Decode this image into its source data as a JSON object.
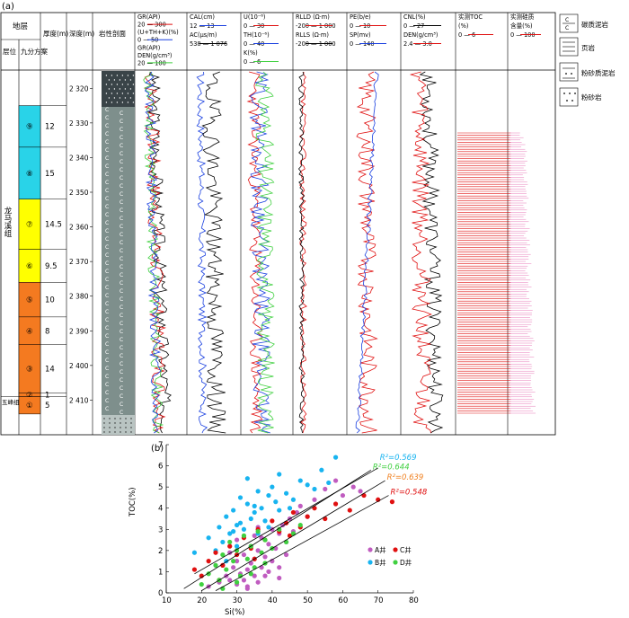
{
  "panel_a_label": "(a)",
  "panel_b_label": "(b)",
  "header": {
    "stratum": "地层",
    "layer": "层位",
    "nine_split": "九分方案",
    "thickness": "厚度(m)",
    "depth": "深度(m)",
    "lithology": "岩性剖面",
    "track1": [
      "GR(API)",
      "20 — 300",
      "(U+TH+K)(%)",
      "0 — 50",
      "GR(API)",
      "DEN(g/cm³)",
      "20 — 100"
    ],
    "track2": [
      "CAL(cm)",
      "12 — 13",
      "AC(μs/m)",
      "538 — 1 076"
    ],
    "track3": [
      "U(10⁻⁶)",
      "0 — 30",
      "TH(10⁻⁶)",
      "0 — 40",
      "K(%)",
      "0 — 6"
    ],
    "track4": [
      "RLLD (Ω·m)",
      "-200 — 1 000",
      "RLLS (Ω·m)",
      "-200 — 1 000"
    ],
    "track5": [
      "PE(b/e)",
      "0 — 10",
      "SP(mv)",
      "0 — 140"
    ],
    "track6": [
      "CNL(%)",
      "0 — 27",
      "DEN(g/cm³)",
      "2.4 — 3.0"
    ],
    "track7": [
      "实测TOC",
      "(%)",
      "0 — 6"
    ],
    "track8": [
      "实测硅质",
      "含量(%)",
      "0 — 100"
    ]
  },
  "legend": [
    "碳质泥岩",
    "页岩",
    "粉砂质泥岩",
    "粉砂岩"
  ],
  "formation": "龙马溪组",
  "formation_lower": "五峰组",
  "depth_ticks": [
    "2 320",
    "2 330",
    "2 340",
    "2 350",
    "2 360",
    "2 370",
    "2 380",
    "2 390",
    "2 400",
    "2 410"
  ],
  "units": [
    {
      "id": "⑨",
      "thickness": "12",
      "color": "#29d3e8"
    },
    {
      "id": "⑧",
      "thickness": "15",
      "color": "#29d3e8"
    },
    {
      "id": "⑦",
      "thickness": "14.5",
      "color": "#ffff00"
    },
    {
      "id": "⑥",
      "thickness": "9.5",
      "color": "#ffff00"
    },
    {
      "id": "⑤",
      "thickness": "10",
      "color": "#f47a20"
    },
    {
      "id": "④",
      "thickness": "8",
      "color": "#f47a20"
    },
    {
      "id": "③",
      "thickness": "14",
      "color": "#f47a20"
    },
    {
      "id": "②",
      "thickness": "1",
      "color": "#f47a20"
    },
    {
      "id": "①",
      "thickness": "5",
      "color": "#f47a20"
    }
  ],
  "chart_data": {
    "type": "scatter",
    "xlabel": "Si(%)",
    "ylabel": "TOC(%)",
    "xlim": [
      10,
      80
    ],
    "ylim": [
      0,
      7
    ],
    "xticks": [
      "10",
      "20",
      "30",
      "40",
      "50",
      "60",
      "70",
      "80"
    ],
    "yticks": [
      "0",
      "1",
      "2",
      "3",
      "4",
      "5",
      "6",
      "7"
    ],
    "series": [
      {
        "name": "A井",
        "color": "#c05cc0",
        "x": [
          22,
          25,
          27,
          28,
          29,
          30,
          30,
          31,
          32,
          32,
          33,
          33,
          34,
          34,
          35,
          35,
          36,
          36,
          37,
          37,
          38,
          38,
          39,
          40,
          40,
          41,
          42,
          42,
          43,
          44,
          45,
          46,
          47,
          48,
          50,
          52,
          55,
          58,
          60,
          63,
          65,
          30,
          33,
          36,
          39,
          42,
          28,
          35,
          44,
          26
        ],
        "y": [
          0.3,
          0.5,
          0.8,
          0.6,
          1.2,
          0.4,
          1.5,
          0.9,
          0.6,
          1.8,
          1.1,
          0.3,
          1.4,
          2.2,
          0.8,
          1.6,
          2.0,
          0.5,
          1.2,
          2.6,
          1.7,
          0.8,
          2.3,
          1.5,
          3.0,
          2.1,
          1.2,
          2.8,
          3.2,
          2.4,
          3.5,
          2.9,
          3.8,
          4.1,
          3.6,
          4.4,
          4.9,
          5.3,
          4.6,
          5.0,
          4.8,
          2.5,
          0.2,
          3.1,
          1.0,
          0.7,
          1.9,
          2.7,
          1.8,
          1.3
        ]
      },
      {
        "name": "B井",
        "color": "#18b4f0",
        "x": [
          18,
          22,
          24,
          25,
          26,
          27,
          28,
          29,
          30,
          31,
          32,
          33,
          34,
          35,
          36,
          37,
          38,
          39,
          40,
          41,
          42,
          44,
          46,
          48,
          50,
          52,
          54,
          56,
          58,
          27,
          30,
          33,
          36,
          39,
          42,
          45,
          29,
          31,
          35
        ],
        "y": [
          1.9,
          2.6,
          2.0,
          3.1,
          2.4,
          3.6,
          2.8,
          3.9,
          3.2,
          4.5,
          3.0,
          4.2,
          3.5,
          3.8,
          4.8,
          4.0,
          3.4,
          4.6,
          5.0,
          4.3,
          3.9,
          4.7,
          4.4,
          5.3,
          5.1,
          4.9,
          5.8,
          5.2,
          6.4,
          1.5,
          2.2,
          5.4,
          2.8,
          3.1,
          5.6,
          4.0,
          2.9,
          3.3,
          4.1
        ]
      },
      {
        "name": "C井",
        "color": "#e01010",
        "x": [
          18,
          20,
          22,
          24,
          26,
          28,
          30,
          32,
          34,
          36,
          38,
          40,
          42,
          44,
          46,
          48,
          50,
          52,
          55,
          58,
          62,
          66,
          70,
          74,
          25,
          35,
          45
        ],
        "y": [
          1.1,
          0.8,
          1.5,
          1.9,
          1.3,
          2.2,
          1.8,
          2.6,
          2.1,
          3.0,
          2.5,
          3.4,
          2.9,
          3.3,
          3.8,
          3.1,
          3.6,
          4.0,
          3.5,
          4.2,
          3.9,
          4.6,
          4.4,
          4.3,
          0.6,
          1.6,
          2.7
        ]
      },
      {
        "name": "D井",
        "color": "#40d040",
        "x": [
          20,
          22,
          24,
          25,
          26,
          27,
          28,
          29,
          30,
          31,
          32,
          33,
          34,
          35,
          36,
          37,
          38,
          40,
          42,
          44,
          46,
          48,
          26,
          30,
          34,
          38
        ],
        "y": [
          0.4,
          0.9,
          1.3,
          0.6,
          1.8,
          1.1,
          2.4,
          1.5,
          2.0,
          0.8,
          2.7,
          1.6,
          2.2,
          1.2,
          2.9,
          1.9,
          2.5,
          2.1,
          3.0,
          2.4,
          2.8,
          3.2,
          0.2,
          0.5,
          0.9,
          1.4
        ]
      }
    ],
    "fit_lines": [
      {
        "r2_label": "R²=0.644",
        "color": "#40d040",
        "x": [
          15,
          68
        ],
        "y": [
          0.2,
          5.8
        ]
      },
      {
        "r2_label": "R²=0.569",
        "color": "#18b4f0",
        "x": [
          18,
          70
        ],
        "y": [
          0.9,
          5.9
        ]
      },
      {
        "r2_label": "R²=0.639",
        "color": "#f08020",
        "x": [
          20,
          72
        ],
        "y": [
          0.1,
          5.3
        ]
      },
      {
        "r2_label": "R²=0.548",
        "color": "#e01010",
        "x": [
          24,
          73
        ],
        "y": [
          0.1,
          4.6
        ]
      }
    ],
    "legend_position": "lower-right"
  }
}
